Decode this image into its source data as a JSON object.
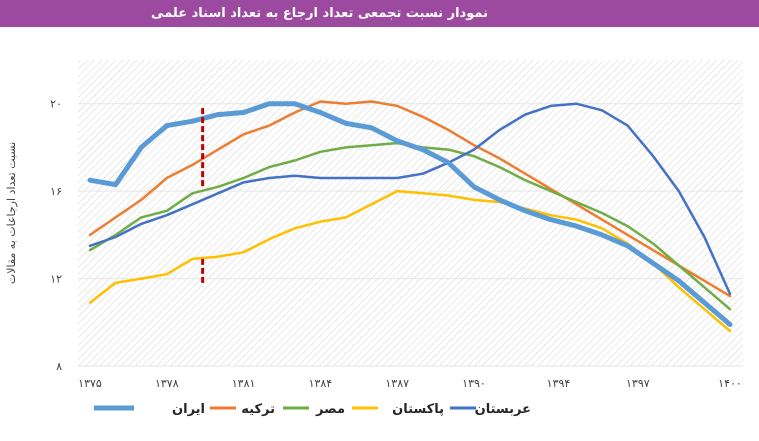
{
  "chart_data": {
    "type": "line",
    "title": "نمودار نسبت تجمعی تعداد ارجاع به تعداد اسناد علمی",
    "xlabel": "",
    "ylabel": "نسبت تعداد ارجاعات به مقالات",
    "x_tick_labels": [
      "۱۳۷۵",
      "۱۳۷۸",
      "۱۳۸۱",
      "۱۳۸۴",
      "۱۳۸۷",
      "۱۳۹۰",
      "۱۳۹۴",
      "۱۳۹۷",
      "۱۴۰۰"
    ],
    "y_tick_labels": [
      "۸",
      "۱۲",
      "۱۶",
      "۲۰"
    ],
    "y_ticks": [
      8,
      12,
      16,
      20
    ],
    "ylim": [
      8,
      22
    ],
    "xlim": [
      1375,
      1400
    ],
    "x": [
      1375,
      1376,
      1377,
      1378,
      1379,
      1380,
      1381,
      1382,
      1383,
      1384,
      1385,
      1386,
      1387,
      1388,
      1389,
      1390,
      1391,
      1392,
      1393,
      1394,
      1395,
      1396,
      1397,
      1398,
      1399,
      1400
    ],
    "series": [
      {
        "name": "ایران",
        "color": "#5b9bd5",
        "width": 5,
        "values": [
          16.5,
          16.3,
          18.0,
          19.0,
          19.2,
          19.5,
          19.6,
          20.0,
          20.0,
          19.6,
          19.1,
          18.9,
          18.3,
          17.9,
          17.3,
          16.2,
          15.6,
          15.1,
          14.7,
          14.4,
          14.0,
          13.5,
          12.7,
          11.9,
          10.9,
          9.9
        ]
      },
      {
        "name": "ترکیه",
        "color": "#ed7d31",
        "width": 2.5,
        "values": [
          14.0,
          14.8,
          15.6,
          16.6,
          17.2,
          17.9,
          18.6,
          19.0,
          19.6,
          20.1,
          20.0,
          20.1,
          19.9,
          19.4,
          18.8,
          18.1,
          17.5,
          16.8,
          16.1,
          15.4,
          14.7,
          14.0,
          13.3,
          12.6,
          11.9,
          11.2
        ]
      },
      {
        "name": "مصر",
        "color": "#70ad47",
        "width": 2.5,
        "values": [
          13.3,
          14.0,
          14.8,
          15.1,
          15.9,
          16.2,
          16.6,
          17.1,
          17.4,
          17.8,
          18.0,
          18.1,
          18.2,
          18.0,
          17.9,
          17.6,
          17.1,
          16.5,
          16.0,
          15.5,
          15.0,
          14.4,
          13.6,
          12.6,
          11.6,
          10.6
        ]
      },
      {
        "name": "پاکستان",
        "color": "#ffc000",
        "width": 2.5,
        "values": [
          10.9,
          11.8,
          12.0,
          12.2,
          12.9,
          13.0,
          13.2,
          13.8,
          14.3,
          14.6,
          14.8,
          15.4,
          16.0,
          15.9,
          15.8,
          15.6,
          15.5,
          15.2,
          14.9,
          14.7,
          14.3,
          13.6,
          12.7,
          11.6,
          10.6,
          9.6
        ]
      },
      {
        "name": "عربستان",
        "color": "#4472c4",
        "width": 2.5,
        "values": [
          13.5,
          13.9,
          14.5,
          14.9,
          15.4,
          15.9,
          16.4,
          16.6,
          16.7,
          16.6,
          16.6,
          16.6,
          16.6,
          16.8,
          17.3,
          17.9,
          18.8,
          19.5,
          19.9,
          20.0,
          19.7,
          19.0,
          17.6,
          16.0,
          13.9,
          11.3
        ]
      }
    ],
    "annotation": {
      "type": "vertical-dashed-line",
      "x": 1379.4,
      "gap_from": 12.9,
      "gap_to": 16.1,
      "color": "#c00000"
    },
    "legend_position": "bottom",
    "grid": "hatched"
  }
}
